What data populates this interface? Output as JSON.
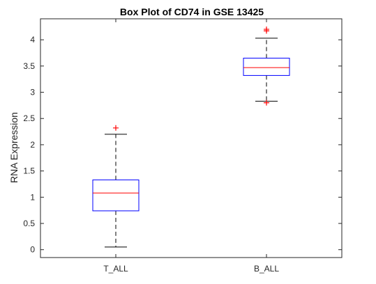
{
  "chart_data": {
    "type": "box",
    "title": "Box Plot of CD74 in GSE 13425",
    "xlabel": "",
    "ylabel": "RNA Expression",
    "ylim": [
      -0.15,
      4.4
    ],
    "yticks": [
      "0",
      "0.5",
      "1",
      "1.5",
      "2",
      "2.5",
      "3",
      "3.5",
      "4"
    ],
    "categories": [
      "T_ALL",
      "B_ALL"
    ],
    "boxes": [
      {
        "category": "T_ALL",
        "whisker_low": 0.05,
        "q1": 0.74,
        "median": 1.08,
        "q3": 1.33,
        "whisker_high": 2.2,
        "outliers": [
          2.32
        ]
      },
      {
        "category": "B_ALL",
        "whisker_low": 2.83,
        "q1": 3.32,
        "median": 3.47,
        "q3": 3.65,
        "whisker_high": 4.03,
        "outliers": [
          2.8,
          4.17,
          4.2
        ]
      }
    ],
    "colors": {
      "box": "#0000FF",
      "median": "#FF0000",
      "whisker": "#000000",
      "outlier": "#FF0000",
      "axis": "#262626"
    },
    "grid": false,
    "legend": "none"
  }
}
